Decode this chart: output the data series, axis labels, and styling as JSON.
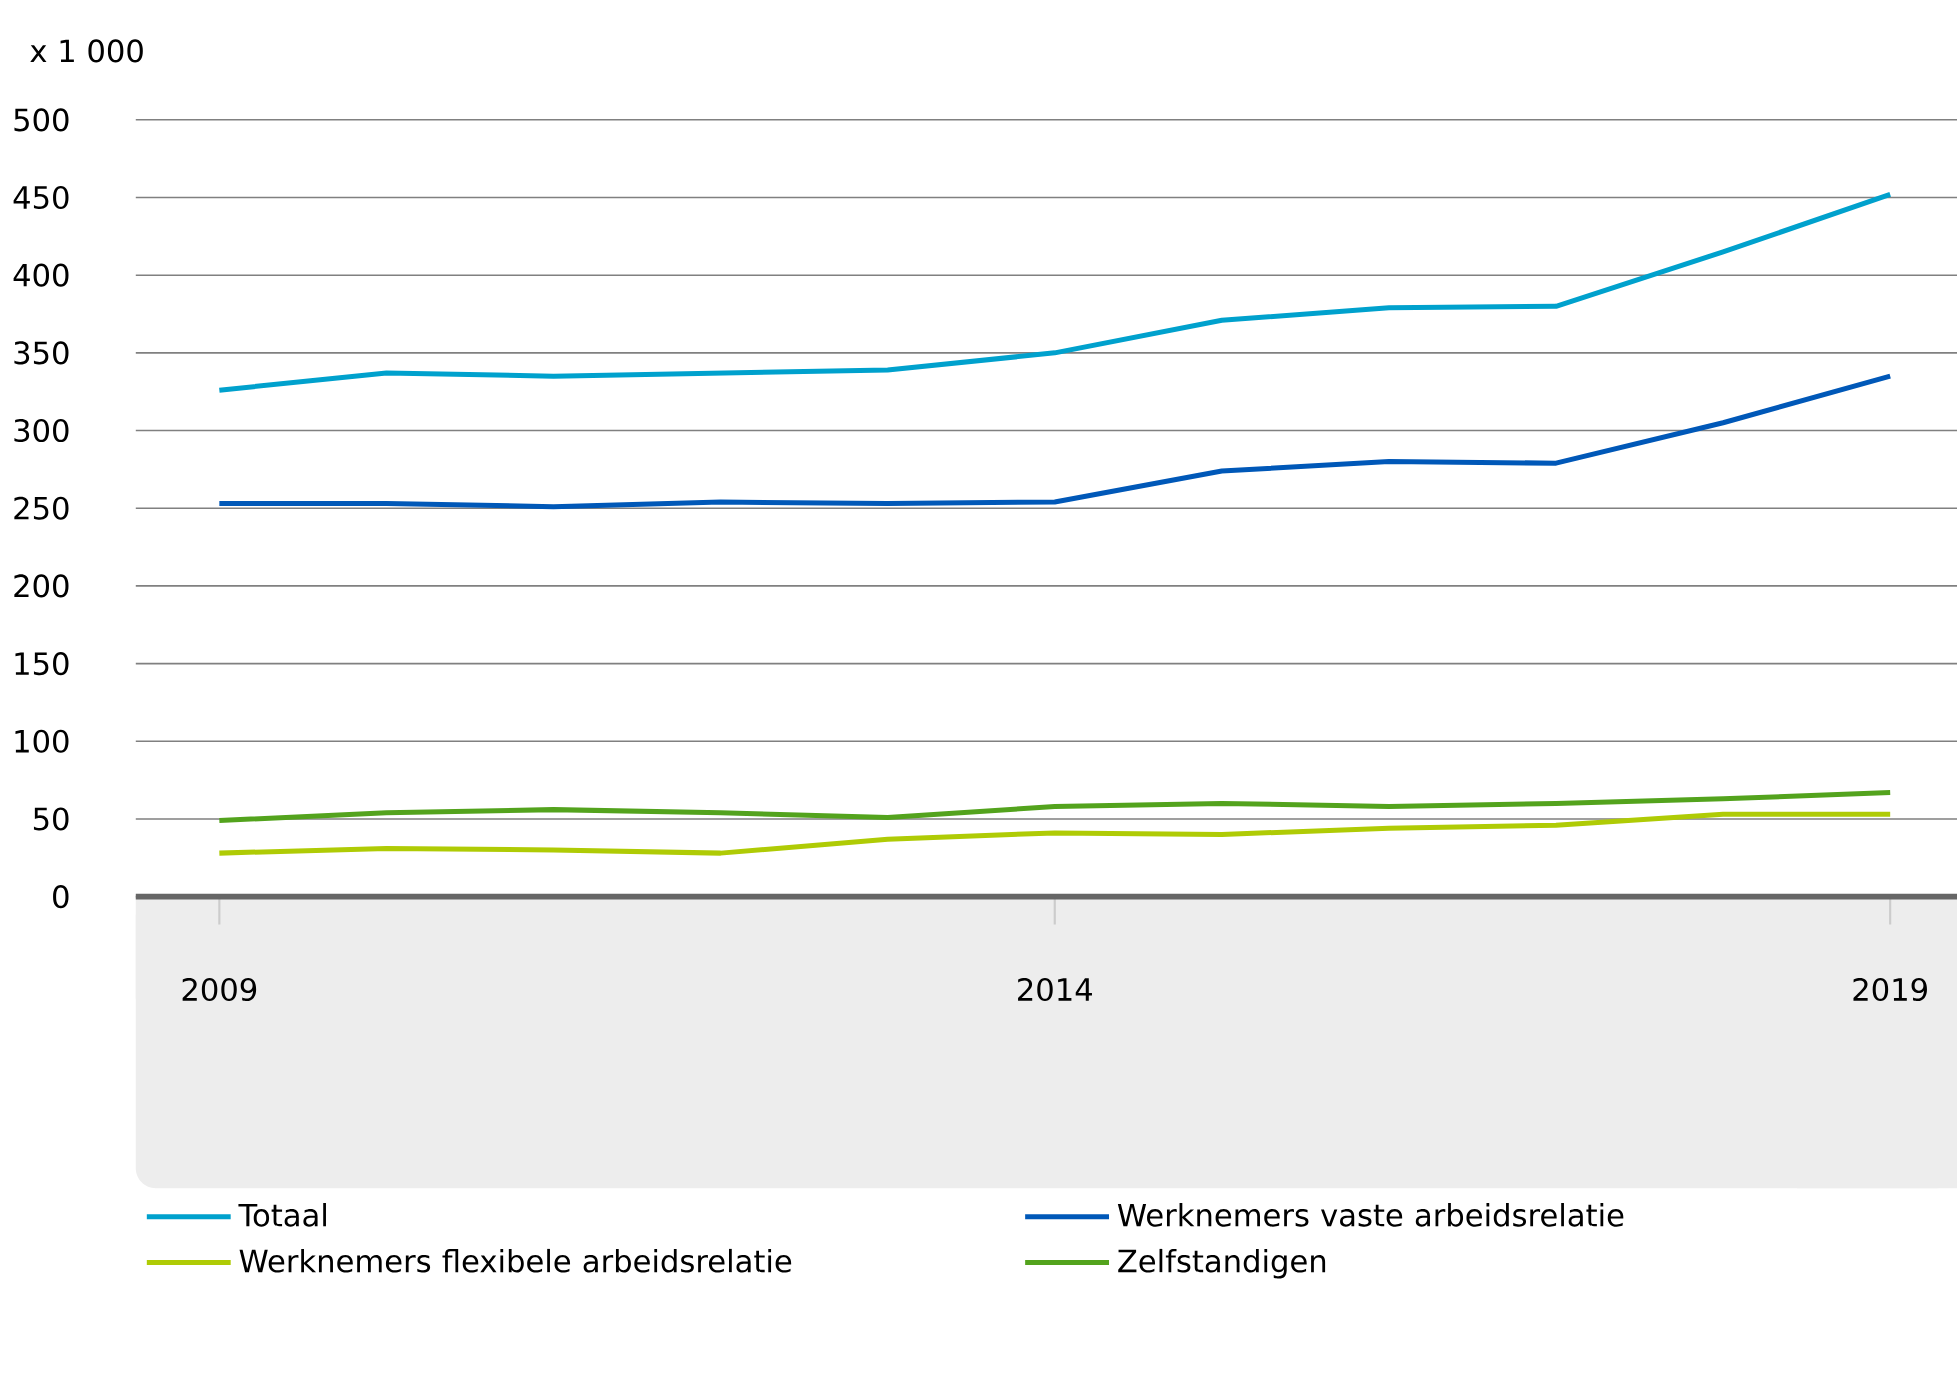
{
  "chart_data": {
    "type": "line",
    "ylabel": "x 1 000",
    "x": [
      2009,
      2010,
      2011,
      2012,
      2013,
      2014,
      2015,
      2016,
      2017,
      2018,
      2019
    ],
    "xlim": [
      2008.5,
      2019.4
    ],
    "xticks": [
      2009,
      2014,
      2019
    ],
    "ylim": [
      0,
      500
    ],
    "yticks": [
      0,
      50,
      100,
      150,
      200,
      250,
      300,
      350,
      400,
      450,
      500
    ],
    "grid": "y",
    "legend": "bottom",
    "series": [
      {
        "name": "Totaal",
        "color": "#00a1cd",
        "values": [
          326,
          337,
          335,
          337,
          339,
          350,
          371,
          379,
          380,
          415,
          452
        ]
      },
      {
        "name": "Werknemers vaste arbeidsrelatie",
        "color": "#0058b8",
        "values": [
          253,
          253,
          251,
          254,
          253,
          254,
          274,
          280,
          279,
          305,
          335
        ]
      },
      {
        "name": "Werknemers flexibele arbeidsrelatie",
        "color": "#afcb05",
        "values": [
          28,
          31,
          30,
          28,
          37,
          41,
          40,
          44,
          46,
          53,
          53
        ]
      },
      {
        "name": "Zelfstandigen",
        "color": "#53a31d",
        "values": [
          49,
          54,
          56,
          54,
          51,
          58,
          60,
          58,
          60,
          63,
          67
        ]
      }
    ]
  }
}
